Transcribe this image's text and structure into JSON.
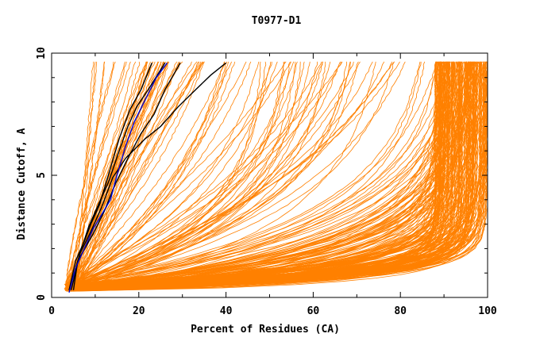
{
  "chart_data": {
    "type": "line",
    "title": "T0977-D1",
    "xlabel": "Percent of Residues (CA)",
    "ylabel": "Distance Cutoff, A",
    "xlim": [
      0,
      100
    ],
    "ylim": [
      0,
      10
    ],
    "x_ticks": [
      "0",
      "20",
      "40",
      "60",
      "80",
      "100"
    ],
    "y_ticks": [
      "0",
      "5",
      "10"
    ],
    "grid": false,
    "legend": "none",
    "colors": {
      "other_models": "#ff8000",
      "highlighted_models": "#000000",
      "best_model": "#0000cc"
    },
    "series": [
      {
        "group": "highlighted",
        "color": "#000000",
        "points": [
          [
            4.0,
            0.3
          ],
          [
            5.5,
            1.5
          ],
          [
            7.5,
            2.3
          ],
          [
            9.0,
            3.0
          ],
          [
            11.0,
            3.8
          ],
          [
            13.0,
            5.0
          ],
          [
            15.5,
            6.5
          ],
          [
            18.0,
            7.7
          ],
          [
            20.5,
            8.5
          ],
          [
            23.0,
            9.6
          ]
        ]
      },
      {
        "group": "highlighted",
        "color": "#000000",
        "points": [
          [
            4.5,
            0.3
          ],
          [
            6.5,
            1.8
          ],
          [
            8.5,
            2.9
          ],
          [
            10.5,
            3.7
          ],
          [
            13.0,
            4.7
          ],
          [
            15.5,
            6.0
          ],
          [
            17.5,
            7.0
          ],
          [
            19.5,
            7.8
          ],
          [
            22.5,
            8.6
          ],
          [
            26.0,
            9.6
          ]
        ]
      },
      {
        "group": "highlighted",
        "color": "#000000",
        "points": [
          [
            5.0,
            0.3
          ],
          [
            6.0,
            1.5
          ],
          [
            9.5,
            2.6
          ],
          [
            12.0,
            3.5
          ],
          [
            14.5,
            4.6
          ],
          [
            17.5,
            5.7
          ],
          [
            20.5,
            6.7
          ],
          [
            23.5,
            7.5
          ],
          [
            26.0,
            8.5
          ],
          [
            29.5,
            9.6
          ]
        ]
      },
      {
        "group": "highlighted",
        "color": "#000000",
        "points": [
          [
            4.0,
            0.3
          ],
          [
            6.5,
            1.8
          ],
          [
            9.0,
            2.7
          ],
          [
            11.5,
            3.7
          ],
          [
            14.0,
            4.9
          ],
          [
            17.0,
            5.7
          ],
          [
            21.5,
            6.5
          ],
          [
            25.0,
            7.0
          ],
          [
            29.0,
            7.8
          ],
          [
            33.0,
            8.5
          ],
          [
            36.5,
            9.1
          ],
          [
            40.0,
            9.6
          ]
        ]
      },
      {
        "group": "best",
        "color": "#0000cc",
        "points": [
          [
            4.0,
            0.2
          ],
          [
            5.5,
            1.2
          ],
          [
            7.5,
            2.0
          ],
          [
            9.5,
            2.8
          ],
          [
            11.5,
            3.4
          ],
          [
            13.5,
            4.0
          ],
          [
            15.0,
            5.0
          ],
          [
            17.0,
            6.2
          ],
          [
            19.0,
            7.2
          ],
          [
            21.5,
            8.1
          ],
          [
            24.0,
            9.0
          ],
          [
            26.5,
            9.6
          ]
        ]
      }
    ]
  }
}
